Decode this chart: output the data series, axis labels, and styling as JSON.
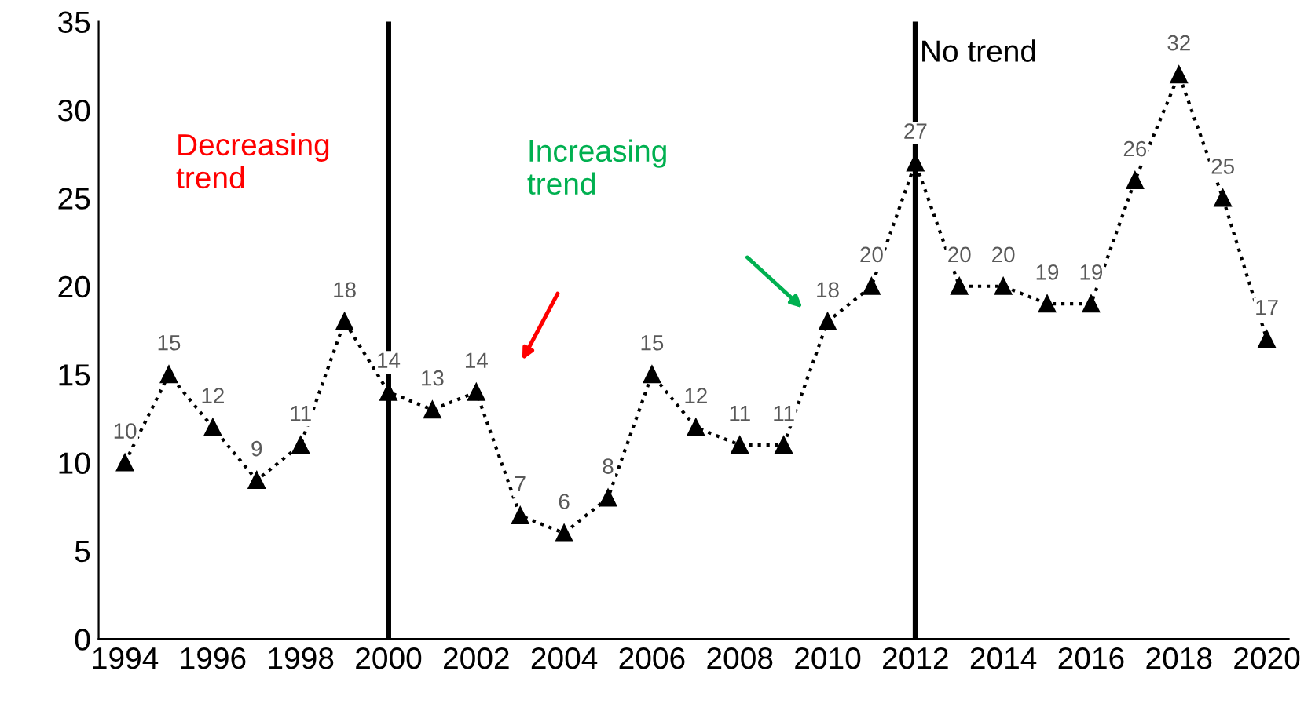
{
  "chart_data": {
    "type": "line",
    "x": [
      1994,
      1995,
      1996,
      1997,
      1998,
      1999,
      2000,
      2001,
      2002,
      2003,
      2004,
      2005,
      2006,
      2007,
      2008,
      2009,
      2010,
      2011,
      2012,
      2013,
      2014,
      2015,
      2016,
      2017,
      2018,
      2019,
      2020
    ],
    "series": [
      {
        "color": "#000000",
        "values": [
          10,
          15,
          12,
          9,
          11,
          18,
          14,
          13,
          14,
          7,
          6,
          8,
          15,
          12,
          11,
          11,
          18,
          20,
          27,
          20,
          20,
          19,
          19,
          26,
          32,
          25,
          17
        ]
      }
    ],
    "data_labels": true,
    "marker": "triangle",
    "line_style": "dotted",
    "grid": false,
    "xlim": [
      1993.4,
      2020.5
    ],
    "xticks": [
      1994,
      1996,
      1998,
      2000,
      2002,
      2004,
      2006,
      2008,
      2010,
      2012,
      2014,
      2016,
      2018,
      2020
    ],
    "ylim": [
      0,
      35
    ],
    "yticks": [
      0,
      5,
      10,
      15,
      20,
      25,
      30,
      35
    ],
    "ref_lines": [
      {
        "axis": "x",
        "value": 2000,
        "label": null,
        "color": "#000000"
      },
      {
        "axis": "x",
        "value": 2012,
        "label": null,
        "color": "#000000"
      }
    ],
    "annotations": [
      "Decreasing\ntrend",
      "Increasing\ntrend",
      "No trend"
    ]
  }
}
